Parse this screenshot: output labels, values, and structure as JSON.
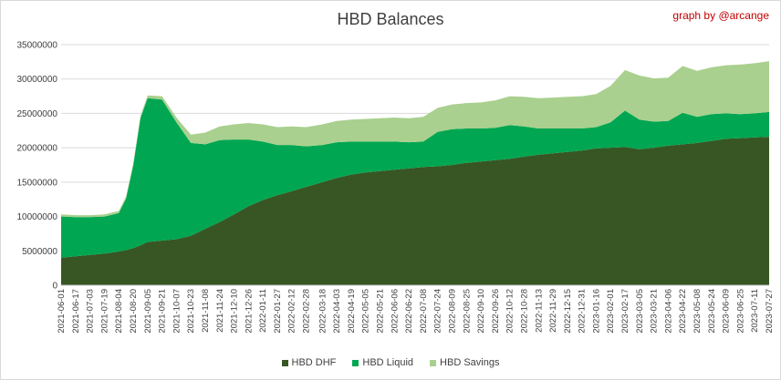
{
  "chart_data": {
    "type": "area",
    "stacked": true,
    "title": "HBD Balances",
    "credit": "graph by @arcange",
    "xlabel": "",
    "ylabel": "",
    "ylim": [
      0,
      35000000
    ],
    "yticks": [
      "0",
      "5000000",
      "10000000",
      "15000000",
      "20000000",
      "25000000",
      "30000000",
      "35000000"
    ],
    "grid": true,
    "legend_position": "bottom",
    "x_tick_labels": [
      "2021-06-01",
      "2021-06-17",
      "2021-07-03",
      "2021-07-19",
      "2021-08-04",
      "2021-08-20",
      "2021-09-05",
      "2021-09-21",
      "2021-10-07",
      "2021-10-23",
      "2021-11-08",
      "2021-11-24",
      "2021-12-10",
      "2021-12-26",
      "2022-01-11",
      "2022-01-27",
      "2022-02-12",
      "2022-02-28",
      "2022-03-18",
      "2022-04-03",
      "2022-04-19",
      "2022-05-05",
      "2022-05-21",
      "2022-06-06",
      "2022-06-22",
      "2022-07-08",
      "2022-07-24",
      "2022-08-09",
      "2022-08-25",
      "2022-09-10",
      "2022-09-26",
      "2022-10-12",
      "2022-10-28",
      "2022-11-13",
      "2022-11-29",
      "2022-12-15",
      "2022-12-31",
      "2023-01-16",
      "2023-02-01",
      "2023-02-17",
      "2023-03-05",
      "2023-03-21",
      "2023-04-06",
      "2023-04-22",
      "2023-05-08",
      "2023-05-24",
      "2023-06-09",
      "2023-06-25",
      "2023-07-11",
      "2023-07-27"
    ],
    "x": [
      "2021-06-01",
      "2021-06-17",
      "2021-07-03",
      "2021-07-19",
      "2021-08-04",
      "2021-08-12",
      "2021-08-20",
      "2021-08-28",
      "2021-09-05",
      "2021-09-21",
      "2021-10-07",
      "2021-10-23",
      "2021-11-08",
      "2021-11-24",
      "2021-12-10",
      "2021-12-26",
      "2022-01-11",
      "2022-01-27",
      "2022-02-12",
      "2022-02-28",
      "2022-03-18",
      "2022-04-03",
      "2022-04-19",
      "2022-05-05",
      "2022-05-21",
      "2022-06-06",
      "2022-06-22",
      "2022-07-08",
      "2022-07-24",
      "2022-08-09",
      "2022-08-25",
      "2022-09-10",
      "2022-09-26",
      "2022-10-12",
      "2022-10-28",
      "2022-11-13",
      "2022-11-29",
      "2022-12-15",
      "2022-12-31",
      "2023-01-16",
      "2023-02-01",
      "2023-02-17",
      "2023-03-05",
      "2023-03-21",
      "2023-04-06",
      "2023-04-22",
      "2023-05-08",
      "2023-05-24",
      "2023-06-09",
      "2023-06-25",
      "2023-07-11",
      "2023-07-27"
    ],
    "series": [
      {
        "name": "HBD DHF",
        "color": "#375623",
        "values": [
          4000000,
          4200000,
          4400000,
          4600000,
          4900000,
          5100000,
          5400000,
          5800000,
          6300000,
          6500000,
          6700000,
          7200000,
          8200000,
          9200000,
          10300000,
          11500000,
          12400000,
          13100000,
          13700000,
          14300000,
          15000000,
          15600000,
          16100000,
          16400000,
          16600000,
          16800000,
          17000000,
          17200000,
          17300000,
          17500000,
          17800000,
          18000000,
          18200000,
          18400000,
          18700000,
          19000000,
          19200000,
          19400000,
          19600000,
          19900000,
          20000000,
          20100000,
          19800000,
          20000000,
          20300000,
          20500000,
          20700000,
          21000000,
          21300000,
          21400000,
          21500000,
          21600000
        ]
      },
      {
        "name": "HBD Liquid",
        "color": "#00a651",
        "values": [
          6000000,
          5700000,
          5500000,
          5400000,
          5600000,
          7500000,
          12000000,
          18500000,
          20900000,
          20500000,
          17000000,
          13500000,
          12300000,
          11900000,
          10900000,
          9700000,
          8500000,
          7300000,
          6700000,
          5900000,
          5400000,
          5200000,
          4800000,
          4500000,
          4300000,
          4100000,
          3800000,
          3700000,
          5000000,
          5200000,
          5000000,
          4800000,
          4700000,
          4900000,
          4400000,
          3800000,
          3600000,
          3400000,
          3200000,
          3100000,
          3700000,
          5300000,
          4300000,
          3800000,
          3600000,
          4600000,
          3800000,
          3900000,
          3700000,
          3500000,
          3500000,
          3600000
        ]
      },
      {
        "name": "HBD Savings",
        "color": "#a9d08e",
        "values": [
          300000,
          300000,
          300000,
          300000,
          300000,
          300000,
          300000,
          300000,
          400000,
          500000,
          700000,
          1200000,
          1700000,
          2000000,
          2200000,
          2400000,
          2500000,
          2600000,
          2700000,
          2800000,
          3000000,
          3100000,
          3200000,
          3300000,
          3400000,
          3500000,
          3500000,
          3600000,
          3500000,
          3600000,
          3700000,
          3800000,
          4000000,
          4200000,
          4300000,
          4400000,
          4500000,
          4600000,
          4700000,
          4800000,
          5300000,
          5900000,
          6400000,
          6300000,
          6300000,
          6800000,
          6700000,
          6800000,
          7000000,
          7200000,
          7300000,
          7400000
        ]
      }
    ]
  }
}
